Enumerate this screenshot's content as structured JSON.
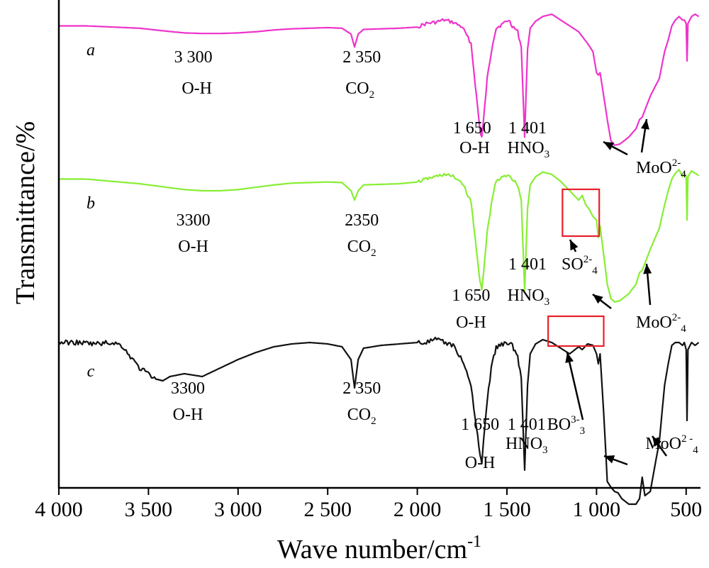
{
  "chart_data": {
    "type": "line",
    "title": "",
    "xlabel": "Wave number/cm",
    "xlabel_sup": "-1",
    "ylabel": "Transmittance/%",
    "xlim": [
      4000,
      420
    ],
    "x_reversed": true,
    "grid": false,
    "legend": "none",
    "xticks": [
      {
        "value": 4000,
        "label": "4 000"
      },
      {
        "value": 3500,
        "label": "3 500"
      },
      {
        "value": 3000,
        "label": "3 000"
      },
      {
        "value": 2500,
        "label": "2 500"
      },
      {
        "value": 2000,
        "label": "2 000"
      },
      {
        "value": 1500,
        "label": "1 500"
      },
      {
        "value": 1000,
        "label": "1 000"
      },
      {
        "value": 500,
        "label": "500"
      }
    ],
    "series": [
      {
        "label": "a",
        "color": "#ee33cc",
        "noise": 2.5,
        "points": [
          [
            4000,
            1.0
          ],
          [
            3850,
            1.0
          ],
          [
            3700,
            0.99
          ],
          [
            3550,
            0.98
          ],
          [
            3400,
            0.955
          ],
          [
            3300,
            0.94
          ],
          [
            3200,
            0.935
          ],
          [
            3100,
            0.935
          ],
          [
            3000,
            0.94
          ],
          [
            2900,
            0.95
          ],
          [
            2800,
            0.965
          ],
          [
            2700,
            0.975
          ],
          [
            2600,
            0.98
          ],
          [
            2500,
            0.985
          ],
          [
            2420,
            0.98
          ],
          [
            2370,
            0.93
          ],
          [
            2350,
            0.82
          ],
          [
            2330,
            0.93
          ],
          [
            2300,
            0.97
          ],
          [
            2200,
            0.975
          ],
          [
            2100,
            0.98
          ],
          [
            2000,
            0.99
          ],
          [
            1950,
            1.02
          ],
          [
            1900,
            1.03
          ],
          [
            1850,
            1.05
          ],
          [
            1800,
            1.03
          ],
          [
            1750,
            0.99
          ],
          [
            1700,
            0.85
          ],
          [
            1670,
            0.4
          ],
          [
            1650,
            0.1
          ],
          [
            1640,
            0.05
          ],
          [
            1630,
            0.2
          ],
          [
            1610,
            0.55
          ],
          [
            1580,
            0.85
          ],
          [
            1560,
            0.98
          ],
          [
            1530,
            1.01
          ],
          [
            1490,
            1.05
          ],
          [
            1470,
            1.0
          ],
          [
            1440,
            0.95
          ],
          [
            1420,
            0.82
          ],
          [
            1401,
            0.05
          ],
          [
            1385,
            0.8
          ],
          [
            1370,
            0.98
          ],
          [
            1340,
            1.04
          ],
          [
            1300,
            1.08
          ],
          [
            1250,
            1.1
          ],
          [
            1200,
            1.05
          ],
          [
            1150,
            1.0
          ],
          [
            1100,
            0.95
          ],
          [
            1050,
            0.85
          ],
          [
            1020,
            0.78
          ],
          [
            1000,
            0.6
          ],
          [
            990,
            0.58
          ],
          [
            980,
            0.6
          ],
          [
            960,
            0.4
          ],
          [
            940,
            0.2
          ],
          [
            920,
            0.02
          ],
          [
            900,
            -0.02
          ],
          [
            870,
            -0.01
          ],
          [
            820,
            0.05
          ],
          [
            780,
            0.12
          ],
          [
            760,
            0.2
          ],
          [
            745,
            0.22
          ],
          [
            730,
            0.28
          ],
          [
            700,
            0.4
          ],
          [
            650,
            0.55
          ],
          [
            620,
            0.78
          ],
          [
            600,
            0.88
          ],
          [
            580,
            1.0
          ],
          [
            560,
            1.05
          ],
          [
            540,
            1.08
          ],
          [
            520,
            1.05
          ],
          [
            510,
            1.05
          ],
          [
            500,
            1.02
          ],
          [
            495,
            0.7
          ],
          [
            490,
            1.02
          ],
          [
            470,
            1.08
          ],
          [
            450,
            1.1
          ],
          [
            430,
            1.08
          ]
        ],
        "yoffset": 20,
        "scale": 165
      },
      {
        "label": "b",
        "color": "#88ee33",
        "noise": 2.5,
        "points": [
          [
            4000,
            1.0
          ],
          [
            3850,
            1.0
          ],
          [
            3700,
            0.98
          ],
          [
            3550,
            0.96
          ],
          [
            3400,
            0.93
          ],
          [
            3300,
            0.91
          ],
          [
            3200,
            0.9
          ],
          [
            3100,
            0.9
          ],
          [
            3000,
            0.91
          ],
          [
            2900,
            0.93
          ],
          [
            2800,
            0.95
          ],
          [
            2700,
            0.965
          ],
          [
            2600,
            0.97
          ],
          [
            2500,
            0.975
          ],
          [
            2420,
            0.97
          ],
          [
            2370,
            0.9
          ],
          [
            2350,
            0.82
          ],
          [
            2330,
            0.9
          ],
          [
            2300,
            0.95
          ],
          [
            2200,
            0.955
          ],
          [
            2100,
            0.96
          ],
          [
            2000,
            0.975
          ],
          [
            1950,
            1.0
          ],
          [
            1900,
            1.02
          ],
          [
            1850,
            1.04
          ],
          [
            1800,
            1.02
          ],
          [
            1750,
            0.97
          ],
          [
            1700,
            0.8
          ],
          [
            1670,
            0.4
          ],
          [
            1650,
            0.12
          ],
          [
            1640,
            0.05
          ],
          [
            1630,
            0.2
          ],
          [
            1610,
            0.55
          ],
          [
            1580,
            0.85
          ],
          [
            1560,
            0.98
          ],
          [
            1530,
            1.01
          ],
          [
            1490,
            1.04
          ],
          [
            1470,
            1.0
          ],
          [
            1440,
            0.95
          ],
          [
            1420,
            0.82
          ],
          [
            1401,
            0.05
          ],
          [
            1385,
            0.75
          ],
          [
            1370,
            0.95
          ],
          [
            1340,
            1.02
          ],
          [
            1300,
            1.06
          ],
          [
            1250,
            1.04
          ],
          [
            1200,
            0.98
          ],
          [
            1150,
            0.9
          ],
          [
            1100,
            0.82
          ],
          [
            1080,
            0.86
          ],
          [
            1060,
            0.78
          ],
          [
            1040,
            0.74
          ],
          [
            1020,
            0.68
          ],
          [
            1000,
            0.65
          ],
          [
            990,
            0.5
          ],
          [
            980,
            0.6
          ],
          [
            960,
            0.35
          ],
          [
            940,
            0.1
          ],
          [
            920,
            -0.02
          ],
          [
            900,
            -0.05
          ],
          [
            870,
            -0.04
          ],
          [
            820,
            0.02
          ],
          [
            780,
            0.1
          ],
          [
            760,
            0.2
          ],
          [
            745,
            0.22
          ],
          [
            730,
            0.28
          ],
          [
            700,
            0.4
          ],
          [
            650,
            0.58
          ],
          [
            620,
            0.78
          ],
          [
            600,
            0.9
          ],
          [
            580,
            1.0
          ],
          [
            560,
            1.05
          ],
          [
            540,
            1.08
          ],
          [
            520,
            1.02
          ],
          [
            510,
            1.05
          ],
          [
            500,
            1.02
          ],
          [
            495,
            0.65
          ],
          [
            490,
            1.02
          ],
          [
            470,
            1.07
          ],
          [
            450,
            1.05
          ],
          [
            430,
            1.03
          ]
        ],
        "yoffset": 236,
        "scale": 165
      },
      {
        "label": "c",
        "color": "#111111",
        "noise": 3.5,
        "points": [
          [
            4000,
            1.0
          ],
          [
            3900,
            1.0
          ],
          [
            3800,
            0.99
          ],
          [
            3700,
            1.0
          ],
          [
            3650,
            0.98
          ],
          [
            3600,
            0.9
          ],
          [
            3550,
            0.82
          ],
          [
            3500,
            0.78
          ],
          [
            3450,
            0.74
          ],
          [
            3420,
            0.73
          ],
          [
            3380,
            0.76
          ],
          [
            3300,
            0.78
          ],
          [
            3250,
            0.77
          ],
          [
            3200,
            0.76
          ],
          [
            3100,
            0.82
          ],
          [
            3000,
            0.88
          ],
          [
            2900,
            0.93
          ],
          [
            2800,
            0.97
          ],
          [
            2700,
            0.99
          ],
          [
            2600,
            1.0
          ],
          [
            2500,
            0.99
          ],
          [
            2420,
            0.97
          ],
          [
            2370,
            0.88
          ],
          [
            2350,
            0.68
          ],
          [
            2330,
            0.88
          ],
          [
            2300,
            0.96
          ],
          [
            2200,
            0.98
          ],
          [
            2100,
            0.99
          ],
          [
            2000,
            1.0
          ],
          [
            1950,
            1.0
          ],
          [
            1900,
            1.02
          ],
          [
            1850,
            1.0
          ],
          [
            1800,
            0.98
          ],
          [
            1750,
            0.88
          ],
          [
            1700,
            0.7
          ],
          [
            1670,
            0.4
          ],
          [
            1650,
            0.2
          ],
          [
            1640,
            0.15
          ],
          [
            1630,
            0.3
          ],
          [
            1610,
            0.6
          ],
          [
            1580,
            0.88
          ],
          [
            1560,
            0.96
          ],
          [
            1530,
            0.99
          ],
          [
            1490,
            1.0
          ],
          [
            1470,
            0.98
          ],
          [
            1440,
            0.9
          ],
          [
            1420,
            0.75
          ],
          [
            1401,
            0.1
          ],
          [
            1385,
            0.7
          ],
          [
            1370,
            0.92
          ],
          [
            1340,
            0.99
          ],
          [
            1300,
            1.02
          ],
          [
            1250,
            1.0
          ],
          [
            1200,
            0.96
          ],
          [
            1150,
            0.92
          ],
          [
            1100,
            0.97
          ],
          [
            1080,
            0.95
          ],
          [
            1050,
            0.99
          ],
          [
            1020,
            0.98
          ],
          [
            1000,
            0.92
          ],
          [
            990,
            0.85
          ],
          [
            980,
            0.92
          ],
          [
            960,
            0.5
          ],
          [
            940,
            0.02
          ],
          [
            920,
            -0.02
          ],
          [
            900,
            -0.05
          ],
          [
            880,
            -0.06
          ],
          [
            860,
            -0.1
          ],
          [
            820,
            -0.14
          ],
          [
            780,
            -0.14
          ],
          [
            760,
            -0.1
          ],
          [
            745,
            0.05
          ],
          [
            730,
            -0.08
          ],
          [
            700,
            -0.05
          ],
          [
            650,
            0.3
          ],
          [
            620,
            0.7
          ],
          [
            600,
            0.85
          ],
          [
            580,
            0.98
          ],
          [
            560,
            1.0
          ],
          [
            540,
            1.0
          ],
          [
            520,
            0.98
          ],
          [
            510,
            1.0
          ],
          [
            500,
            0.95
          ],
          [
            495,
            0.45
          ],
          [
            490,
            0.95
          ],
          [
            470,
            1.0
          ],
          [
            450,
            0.98
          ],
          [
            430,
            1.0
          ]
        ],
        "yoffset": 463,
        "scale": 200
      }
    ],
    "highlight_boxes": [
      {
        "series": "b",
        "x_from": 1190,
        "x_to": 985
      },
      {
        "series": "c",
        "x_from": 1270,
        "x_to": 960
      }
    ],
    "annotations": [
      {
        "text": "3 300",
        "series": "a",
        "x": 3250,
        "row": 1
      },
      {
        "text": "O-H",
        "series": "a",
        "x": 3230,
        "row": 2
      },
      {
        "text": "2 350",
        "series": "a",
        "x": 2310,
        "row": 1
      },
      {
        "text": "CO",
        "sub": "2",
        "series": "a",
        "x": 2320,
        "row": 2
      },
      {
        "text": "1 650",
        "series": "a",
        "x": 1695,
        "row": 3
      },
      {
        "text": "1 401",
        "series": "a",
        "x": 1385,
        "row": 3
      },
      {
        "text": "O-H",
        "series": "a",
        "x": 1680,
        "row": 4
      },
      {
        "text": "HNO",
        "sub": "3",
        "series": "a",
        "x": 1380,
        "row": 4
      },
      {
        "text": "MoO",
        "sub": "4",
        "sup": "2-",
        "series": "a",
        "x": 640,
        "row": 5
      },
      {
        "text": "3300",
        "series": "b",
        "x": 3250,
        "row": 1
      },
      {
        "text": "O-H",
        "series": "b",
        "x": 3250,
        "row": 2
      },
      {
        "text": "2350",
        "series": "b",
        "x": 2310,
        "row": 1
      },
      {
        "text": "CO",
        "sub": "2",
        "series": "b",
        "x": 2310,
        "row": 2
      },
      {
        "text": "1 401",
        "series": "b",
        "x": 1385,
        "row": 3
      },
      {
        "text": "SO",
        "sup": "2-",
        "sub": "4",
        "series": "b",
        "x": 1095,
        "row": 3
      },
      {
        "text": "1 650",
        "series": "b",
        "x": 1700,
        "row": 4
      },
      {
        "text": "HNO",
        "sub": "3",
        "series": "b",
        "x": 1380,
        "row": 4
      },
      {
        "text": "O-H",
        "series": "b",
        "x": 1700,
        "row": 5
      },
      {
        "text": "MoO",
        "sub": "4",
        "sup": "2-",
        "series": "b",
        "x": 640,
        "row": 5
      },
      {
        "text": "3300",
        "series": "c",
        "x": 3280,
        "row": 1
      },
      {
        "text": "O-H",
        "series": "c",
        "x": 3280,
        "row": 2
      },
      {
        "text": "2 350",
        "series": "c",
        "x": 2310,
        "row": 1
      },
      {
        "text": "CO",
        "sub": "2",
        "series": "c",
        "x": 2310,
        "row": 2
      },
      {
        "text": "1 650",
        "series": "c",
        "x": 1650,
        "row": 3
      },
      {
        "text": "1 401",
        "series": "c",
        "x": 1390,
        "row": 3
      },
      {
        "text": "BO",
        "sup": "3-",
        "sub": "3",
        "series": "c",
        "x": 1170,
        "row": 3
      },
      {
        "text": "HNO",
        "sub": "3",
        "series": "c",
        "x": 1390,
        "row": 4
      },
      {
        "text": "MoO",
        "sub": "4",
        "sup": "2 -",
        "series": "c",
        "x": 580,
        "row": 4
      },
      {
        "text": "O-H",
        "series": "c",
        "x": 1650,
        "row": 5
      }
    ]
  }
}
